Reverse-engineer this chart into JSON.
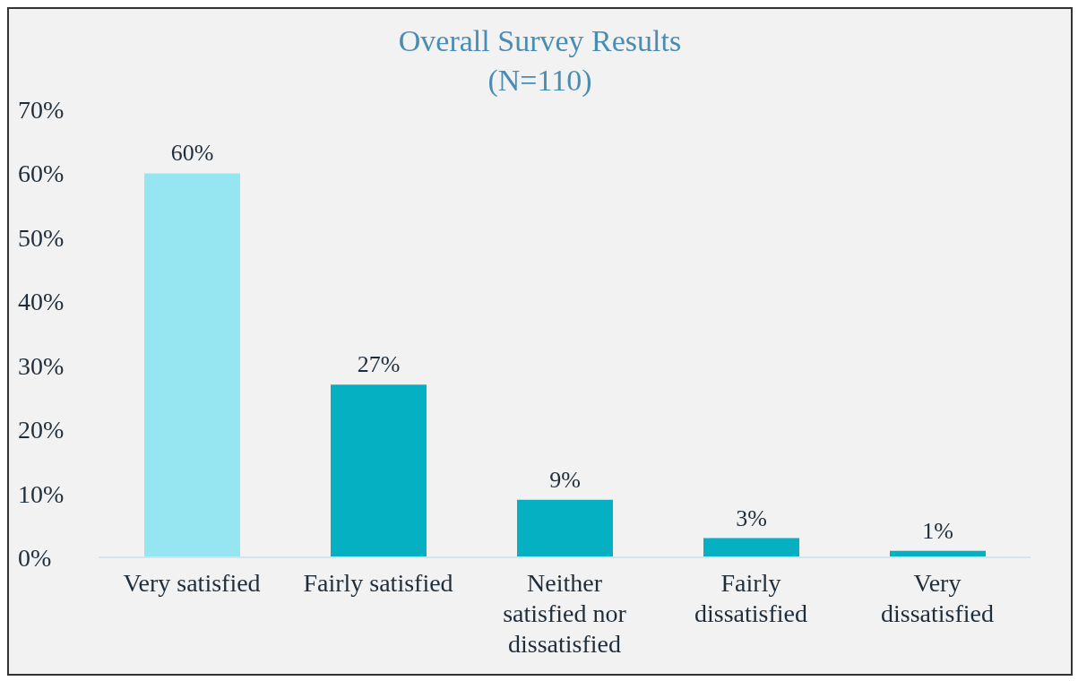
{
  "chart_data": {
    "type": "bar",
    "title": "Overall Survey Results",
    "subtitle": "(N=110)",
    "categories": [
      "Very satisfied",
      "Fairly satisfied",
      "Neither satisfied nor dissatisfied",
      "Fairly dissatisfied",
      "Very dissatisfied"
    ],
    "values": [
      60,
      27,
      9,
      3,
      1
    ],
    "colors": [
      "#95e6f1",
      "#04b0c2",
      "#04b0c2",
      "#04b0c2",
      "#04b0c2"
    ],
    "value_labels": [
      "60%",
      "27%",
      "9%",
      "3%",
      "1%"
    ],
    "ylim": [
      0,
      70
    ],
    "yticks": [
      {
        "value": 0,
        "label": "0%"
      },
      {
        "value": 10,
        "label": "10%"
      },
      {
        "value": 20,
        "label": "20%"
      },
      {
        "value": 30,
        "label": "30%"
      },
      {
        "value": 40,
        "label": "40%"
      },
      {
        "value": 50,
        "label": "50%"
      },
      {
        "value": 60,
        "label": "60%"
      },
      {
        "value": 70,
        "label": "70%"
      }
    ],
    "grid": false,
    "legend": false
  }
}
